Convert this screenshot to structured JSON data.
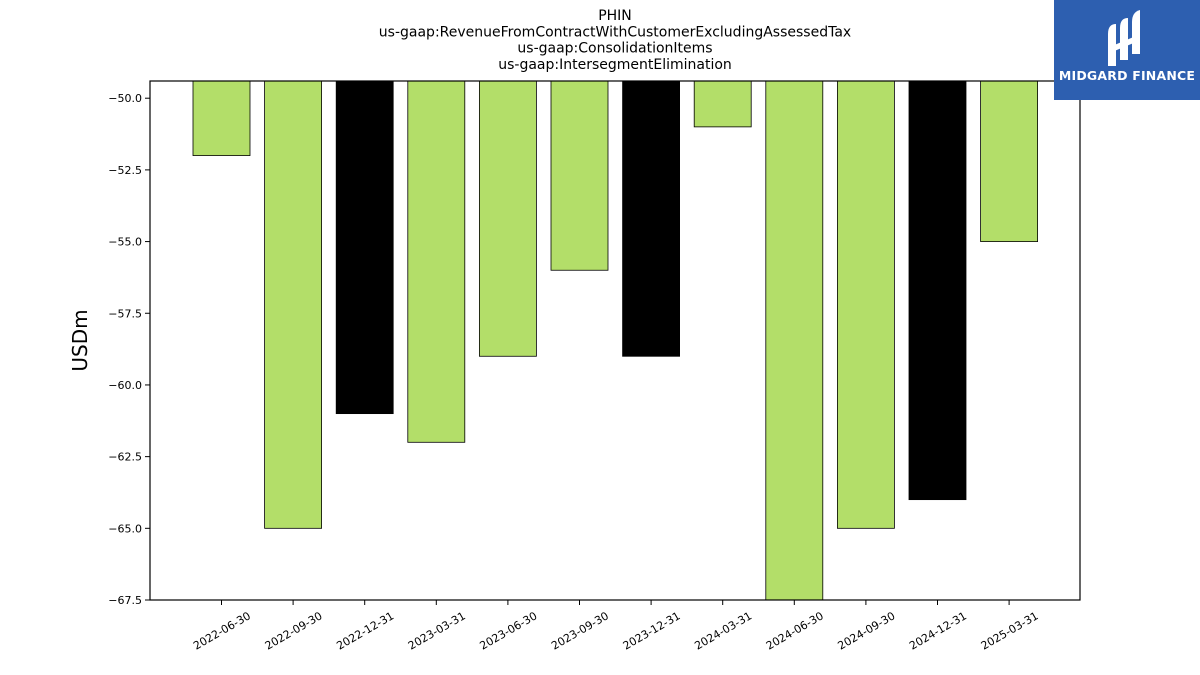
{
  "chart_data": {
    "type": "bar",
    "title_lines": [
      "PHIN",
      "us-gaap:RevenueFromContractWithCustomerExcludingAssessedTax",
      "us-gaap:ConsolidationItems",
      "us-gaap:IntersegmentElimination"
    ],
    "ylabel": "USDm",
    "xlabel": "",
    "categories": [
      "2022-06-30",
      "2022-09-30",
      "2022-12-31",
      "2023-03-31",
      "2023-06-30",
      "2023-09-30",
      "2023-12-31",
      "2024-03-31",
      "2024-06-30",
      "2024-09-30",
      "2024-12-31",
      "2025-03-31"
    ],
    "values": [
      -52,
      -65,
      -61,
      -62,
      -59,
      -56,
      -59,
      -51,
      -68,
      -65,
      -64,
      -55
    ],
    "bar_colors": [
      "#b3de69",
      "#b3de69",
      "#000000",
      "#b3de69",
      "#b3de69",
      "#b3de69",
      "#000000",
      "#b3de69",
      "#b3de69",
      "#b3de69",
      "#000000",
      "#b3de69"
    ],
    "ylim": [
      -67.5,
      -49.4
    ],
    "yticks": [
      -50.0,
      -52.5,
      -55.0,
      -57.5,
      -60.0,
      -62.5,
      -65.0,
      -67.5
    ],
    "ytick_labels": [
      "−50.0",
      "−52.5",
      "−55.0",
      "−57.5",
      "−60.0",
      "−62.5",
      "−65.0",
      "−67.5"
    ],
    "grid": false,
    "legend": "none"
  },
  "logo": {
    "text": "MIDGARD FINANCE",
    "background": "#2d5fb0"
  }
}
